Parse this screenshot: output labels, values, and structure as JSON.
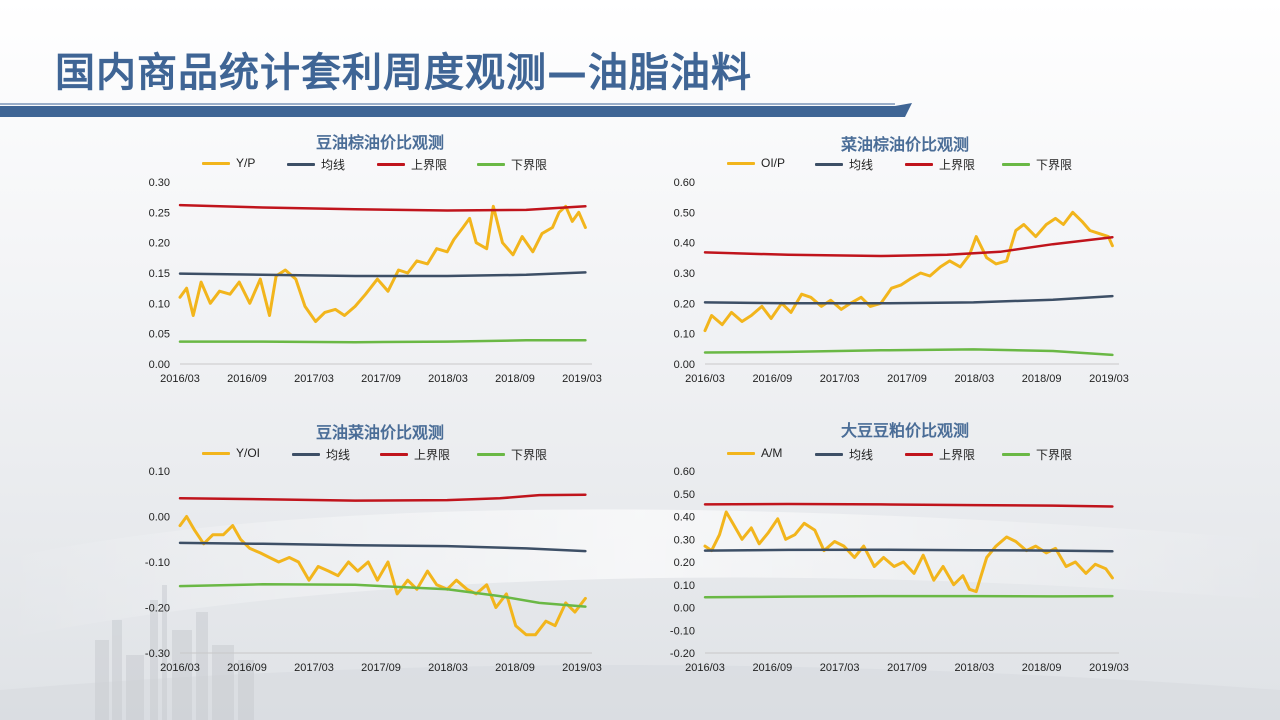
{
  "page": {
    "title": "国内商品统计套利周度观测—油脂油料",
    "colors": {
      "title": "#3f6595",
      "bar": "#3f6595",
      "panel_title": "#4a6d97"
    }
  },
  "chart_data": [
    {
      "type": "line",
      "title": "豆油棕油价比观测",
      "ylim": [
        0,
        0.3
      ],
      "yticks": [
        "0.30",
        "0.25",
        "0.20",
        "0.15",
        "0.10",
        "0.05",
        "0.00"
      ],
      "xticks": [
        "2016/03",
        "2016/09",
        "2017/03",
        "2017/09",
        "2018/03",
        "2018/09",
        "2019/03"
      ],
      "xrange": [
        2016.17,
        2019.3
      ],
      "series": [
        {
          "name": "Y/P",
          "color": "#f2b51c",
          "width": 3,
          "x": [
            2016.17,
            2016.22,
            2016.27,
            2016.33,
            2016.4,
            2016.47,
            2016.55,
            2016.62,
            2016.7,
            2016.78,
            2016.85,
            2016.9,
            2016.97,
            2017.05,
            2017.12,
            2017.2,
            2017.27,
            2017.35,
            2017.42,
            2017.5,
            2017.58,
            2017.67,
            2017.75,
            2017.83,
            2017.9,
            2017.97,
            2018.05,
            2018.12,
            2018.2,
            2018.25,
            2018.32,
            2018.37,
            2018.42,
            2018.5,
            2018.55,
            2018.62,
            2018.7,
            2018.77,
            2018.85,
            2018.92,
            2019.0,
            2019.05,
            2019.1,
            2019.15,
            2019.2,
            2019.25
          ],
          "y": [
            0.11,
            0.125,
            0.08,
            0.135,
            0.1,
            0.12,
            0.115,
            0.135,
            0.1,
            0.14,
            0.08,
            0.145,
            0.155,
            0.14,
            0.095,
            0.07,
            0.085,
            0.09,
            0.08,
            0.095,
            0.115,
            0.14,
            0.12,
            0.155,
            0.15,
            0.17,
            0.165,
            0.19,
            0.185,
            0.205,
            0.225,
            0.24,
            0.2,
            0.19,
            0.26,
            0.2,
            0.18,
            0.21,
            0.185,
            0.215,
            0.225,
            0.25,
            0.26,
            0.235,
            0.25,
            0.225
          ]
        },
        {
          "name": "均线",
          "color": "#3d4f66",
          "width": 2.5,
          "x": [
            2016.17,
            2016.8,
            2017.5,
            2018.2,
            2018.8,
            2019.25
          ],
          "y": [
            0.149,
            0.147,
            0.145,
            0.145,
            0.147,
            0.151
          ]
        },
        {
          "name": "上界限",
          "color": "#c0141c",
          "width": 2.5,
          "x": [
            2016.17,
            2016.8,
            2017.5,
            2018.2,
            2018.8,
            2019.25
          ],
          "y": [
            0.262,
            0.258,
            0.255,
            0.253,
            0.254,
            0.26
          ]
        },
        {
          "name": "下界限",
          "color": "#6ab845",
          "width": 2.5,
          "x": [
            2016.17,
            2016.8,
            2017.5,
            2018.2,
            2018.8,
            2019.25
          ],
          "y": [
            0.037,
            0.037,
            0.036,
            0.037,
            0.039,
            0.039
          ]
        }
      ]
    },
    {
      "type": "line",
      "title": "菜油棕油价比观测",
      "ylim": [
        0,
        0.6
      ],
      "yticks": [
        "0.60",
        "0.50",
        "0.40",
        "0.30",
        "0.20",
        "0.10",
        "0.00"
      ],
      "xticks": [
        "2016/03",
        "2016/09",
        "2017/03",
        "2017/09",
        "2018/03",
        "2018/09",
        "2019/03"
      ],
      "xrange": [
        2016.17,
        2019.3
      ],
      "series": [
        {
          "name": "OI/P",
          "color": "#f2b51c",
          "width": 3,
          "x": [
            2016.17,
            2016.22,
            2016.3,
            2016.37,
            2016.45,
            2016.52,
            2016.6,
            2016.67,
            2016.75,
            2016.82,
            2016.9,
            2016.97,
            2017.05,
            2017.12,
            2017.2,
            2017.27,
            2017.35,
            2017.42,
            2017.5,
            2017.58,
            2017.65,
            2017.72,
            2017.8,
            2017.87,
            2017.95,
            2018.02,
            2018.1,
            2018.17,
            2018.22,
            2018.3,
            2018.37,
            2018.45,
            2018.52,
            2018.58,
            2018.67,
            2018.75,
            2018.82,
            2018.88,
            2018.95,
            2019.02,
            2019.08,
            2019.15,
            2019.22,
            2019.25
          ],
          "y": [
            0.11,
            0.16,
            0.13,
            0.17,
            0.14,
            0.16,
            0.19,
            0.15,
            0.2,
            0.17,
            0.23,
            0.22,
            0.19,
            0.21,
            0.18,
            0.2,
            0.22,
            0.19,
            0.2,
            0.25,
            0.26,
            0.28,
            0.3,
            0.29,
            0.32,
            0.34,
            0.32,
            0.36,
            0.42,
            0.35,
            0.33,
            0.34,
            0.44,
            0.46,
            0.42,
            0.46,
            0.48,
            0.46,
            0.5,
            0.47,
            0.44,
            0.43,
            0.42,
            0.39
          ]
        },
        {
          "name": "均线",
          "color": "#3d4f66",
          "width": 2.5,
          "x": [
            2016.17,
            2016.8,
            2017.5,
            2018.2,
            2018.8,
            2019.25
          ],
          "y": [
            0.203,
            0.2,
            0.2,
            0.203,
            0.212,
            0.224
          ]
        },
        {
          "name": "上界限",
          "color": "#c0141c",
          "width": 2.5,
          "x": [
            2016.17,
            2016.8,
            2017.5,
            2018.0,
            2018.4,
            2018.8,
            2019.25
          ],
          "y": [
            0.368,
            0.36,
            0.356,
            0.36,
            0.37,
            0.395,
            0.418
          ]
        },
        {
          "name": "下界限",
          "color": "#6ab845",
          "width": 2.5,
          "x": [
            2016.17,
            2016.8,
            2017.5,
            2018.2,
            2018.8,
            2019.25
          ],
          "y": [
            0.038,
            0.04,
            0.045,
            0.048,
            0.043,
            0.03
          ]
        }
      ]
    },
    {
      "type": "line",
      "title": "豆油菜油价比观测",
      "ylim": [
        -0.3,
        0.1
      ],
      "yticks": [
        "0.10",
        "0.00",
        "-0.10",
        "-0.20",
        "-0.30"
      ],
      "xticks": [
        "2016/03",
        "2016/09",
        "2017/03",
        "2017/09",
        "2018/03",
        "2018/09",
        "2019/03"
      ],
      "xrange": [
        2016.17,
        2019.3
      ],
      "series": [
        {
          "name": "Y/OI",
          "color": "#f2b51c",
          "width": 3,
          "x": [
            2016.17,
            2016.22,
            2016.28,
            2016.35,
            2016.42,
            2016.5,
            2016.57,
            2016.63,
            2016.7,
            2016.78,
            2016.85,
            2016.92,
            2017.0,
            2017.07,
            2017.15,
            2017.22,
            2017.3,
            2017.37,
            2017.45,
            2017.52,
            2017.6,
            2017.67,
            2017.75,
            2017.82,
            2017.9,
            2017.97,
            2018.05,
            2018.12,
            2018.2,
            2018.27,
            2018.35,
            2018.42,
            2018.5,
            2018.57,
            2018.65,
            2018.72,
            2018.8,
            2018.87,
            2018.95,
            2019.02,
            2019.1,
            2019.17,
            2019.25
          ],
          "y": [
            -0.02,
            0.0,
            -0.03,
            -0.06,
            -0.04,
            -0.04,
            -0.02,
            -0.05,
            -0.07,
            -0.08,
            -0.09,
            -0.1,
            -0.09,
            -0.1,
            -0.14,
            -0.11,
            -0.12,
            -0.13,
            -0.1,
            -0.12,
            -0.1,
            -0.14,
            -0.1,
            -0.17,
            -0.14,
            -0.16,
            -0.12,
            -0.15,
            -0.16,
            -0.14,
            -0.16,
            -0.17,
            -0.15,
            -0.2,
            -0.17,
            -0.24,
            -0.26,
            -0.26,
            -0.23,
            -0.24,
            -0.19,
            -0.21,
            -0.18
          ]
        },
        {
          "name": "均线",
          "color": "#3d4f66",
          "width": 2.5,
          "x": [
            2016.17,
            2016.8,
            2017.5,
            2018.2,
            2018.8,
            2019.25
          ],
          "y": [
            -0.058,
            -0.06,
            -0.063,
            -0.065,
            -0.07,
            -0.076
          ]
        },
        {
          "name": "上界限",
          "color": "#c0141c",
          "width": 2.5,
          "x": [
            2016.17,
            2016.8,
            2017.5,
            2018.2,
            2018.6,
            2018.9,
            2019.25
          ],
          "y": [
            0.04,
            0.038,
            0.035,
            0.036,
            0.04,
            0.047,
            0.048
          ]
        },
        {
          "name": "下界限",
          "color": "#6ab845",
          "width": 2.5,
          "x": [
            2016.17,
            2016.8,
            2017.5,
            2018.2,
            2018.6,
            2018.9,
            2019.25
          ],
          "y": [
            -0.153,
            -0.149,
            -0.15,
            -0.16,
            -0.175,
            -0.19,
            -0.198
          ]
        }
      ]
    },
    {
      "type": "line",
      "title": "大豆豆粕价比观测",
      "ylim": [
        -0.2,
        0.6
      ],
      "yticks": [
        "0.60",
        "0.50",
        "0.40",
        "0.30",
        "0.20",
        "0.10",
        "0.00",
        "-0.10",
        "-0.20"
      ],
      "xticks": [
        "2016/03",
        "2016/09",
        "2017/03",
        "2017/09",
        "2018/03",
        "2018/09",
        "2019/03"
      ],
      "xrange": [
        2016.17,
        2019.3
      ],
      "series": [
        {
          "name": "A/M",
          "color": "#f2b51c",
          "width": 3,
          "x": [
            2016.17,
            2016.22,
            2016.28,
            2016.33,
            2016.38,
            2016.45,
            2016.52,
            2016.58,
            2016.65,
            2016.72,
            2016.78,
            2016.85,
            2016.92,
            2017.0,
            2017.07,
            2017.15,
            2017.22,
            2017.3,
            2017.37,
            2017.45,
            2017.52,
            2017.6,
            2017.67,
            2017.75,
            2017.82,
            2017.9,
            2017.97,
            2018.05,
            2018.12,
            2018.17,
            2018.22,
            2018.3,
            2018.37,
            2018.45,
            2018.52,
            2018.6,
            2018.67,
            2018.75,
            2018.82,
            2018.9,
            2018.97,
            2019.05,
            2019.12,
            2019.2,
            2019.25
          ],
          "y": [
            0.27,
            0.25,
            0.32,
            0.42,
            0.37,
            0.3,
            0.35,
            0.28,
            0.33,
            0.39,
            0.3,
            0.32,
            0.37,
            0.34,
            0.25,
            0.29,
            0.27,
            0.22,
            0.27,
            0.18,
            0.22,
            0.18,
            0.2,
            0.15,
            0.23,
            0.12,
            0.18,
            0.1,
            0.14,
            0.08,
            0.07,
            0.22,
            0.27,
            0.31,
            0.29,
            0.25,
            0.27,
            0.24,
            0.26,
            0.18,
            0.2,
            0.15,
            0.19,
            0.17,
            0.13
          ]
        },
        {
          "name": "均线",
          "color": "#3d4f66",
          "width": 2.5,
          "x": [
            2016.17,
            2016.8,
            2017.5,
            2018.2,
            2018.8,
            2019.25
          ],
          "y": [
            0.25,
            0.253,
            0.254,
            0.252,
            0.25,
            0.247
          ]
        },
        {
          "name": "上界限",
          "color": "#c0141c",
          "width": 2.5,
          "x": [
            2016.17,
            2016.8,
            2017.5,
            2018.2,
            2018.8,
            2019.25
          ],
          "y": [
            0.453,
            0.455,
            0.453,
            0.45,
            0.448,
            0.444
          ]
        },
        {
          "name": "下界限",
          "color": "#6ab845",
          "width": 2.5,
          "x": [
            2016.17,
            2016.8,
            2017.5,
            2018.2,
            2018.8,
            2019.25
          ],
          "y": [
            0.045,
            0.048,
            0.05,
            0.05,
            0.049,
            0.05
          ]
        }
      ]
    }
  ]
}
